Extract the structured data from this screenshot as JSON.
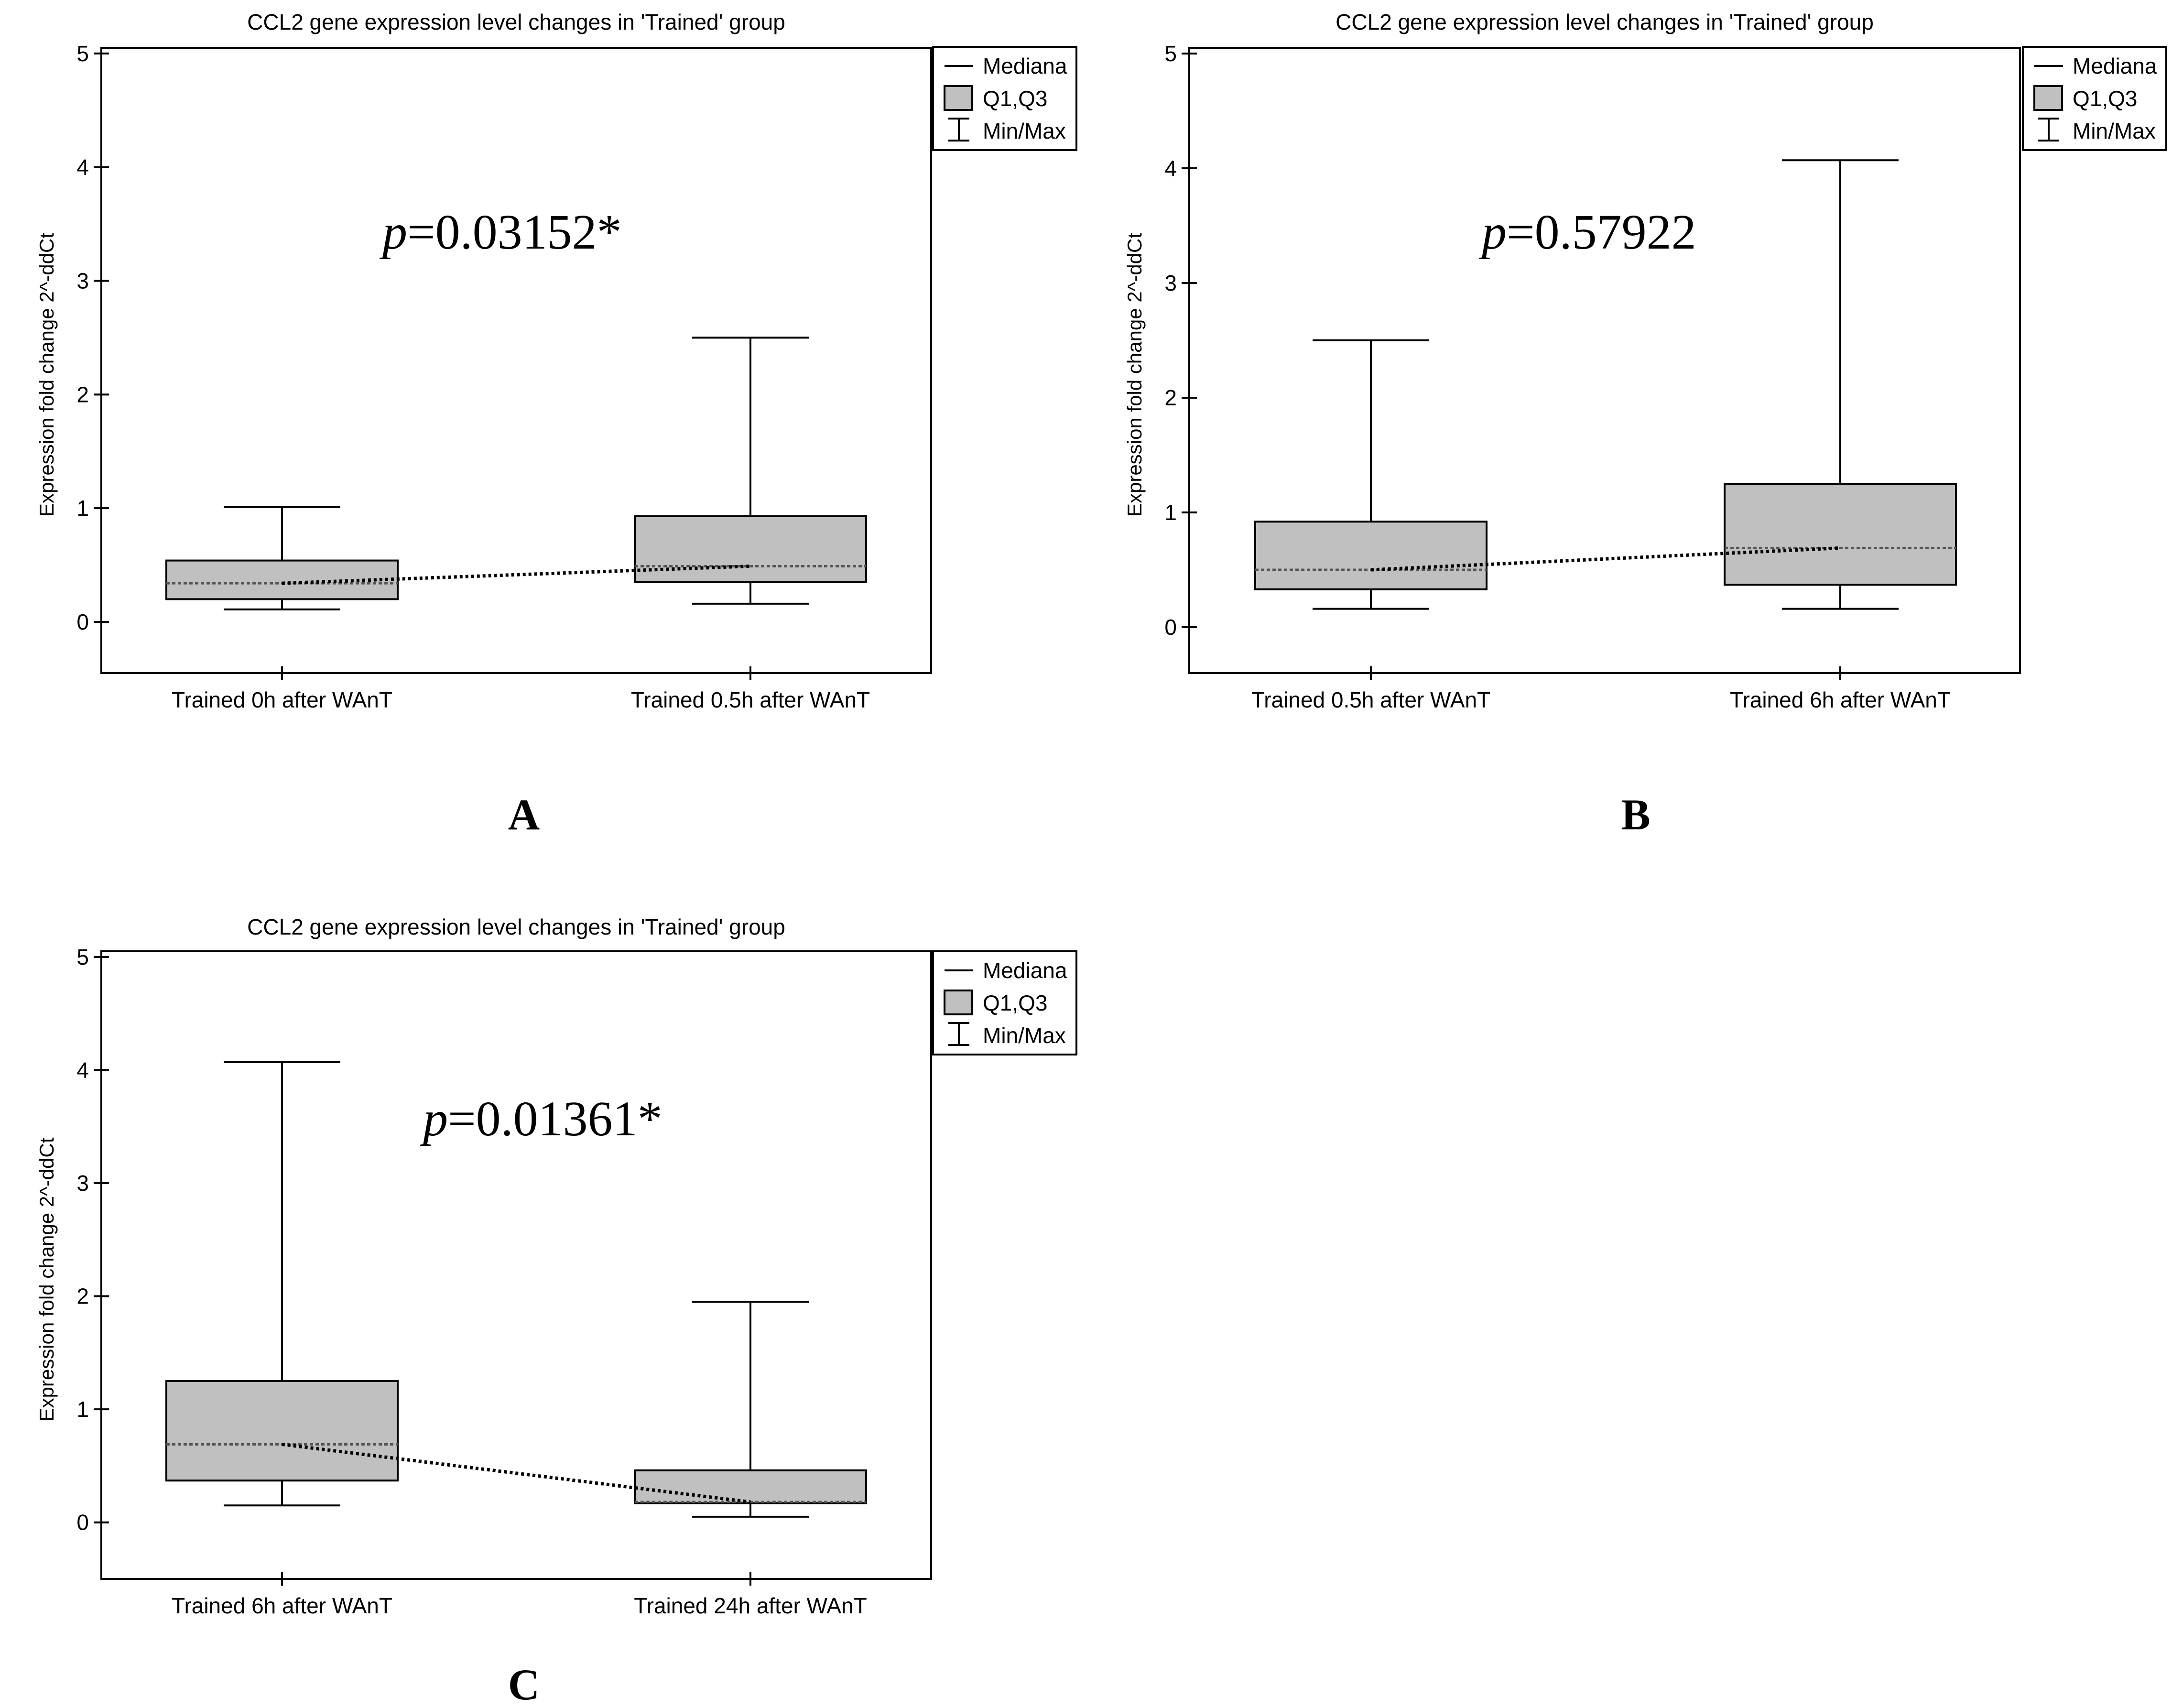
{
  "legend": {
    "median_label": "Mediana",
    "quartile_label": "Q1,Q3",
    "minmax_label": "Min/Max"
  },
  "colors": {
    "box_fill": "#c0c0c0",
    "line": "#000000",
    "background": "#ffffff"
  },
  "chart_data": [
    {
      "type": "box",
      "panel_label": "A",
      "title": "CCL2 gene expression level changes in 'Trained' group",
      "ylabel": "Expression fold change 2^-ddCt",
      "xlabel": "",
      "ylim": [
        -0.45,
        5.05
      ],
      "yticks": [
        0,
        1,
        2,
        3,
        4,
        5
      ],
      "grid": false,
      "legend_position": "top-right",
      "annotation": {
        "p_symbol": "p",
        "p_value": "=0.03152*"
      },
      "categories": [
        "Trained 0h after WAnT",
        "Trained 0.5h after WAnT"
      ],
      "boxes": [
        {
          "min": 0.11,
          "q1": 0.2,
          "median": 0.34,
          "q3": 0.54,
          "max": 1.01
        },
        {
          "min": 0.16,
          "q1": 0.35,
          "median": 0.49,
          "q3": 0.93,
          "max": 2.5
        }
      ]
    },
    {
      "type": "box",
      "panel_label": "B",
      "title": "CCL2 gene expression level changes in 'Trained' group",
      "ylabel": "Expression fold change 2^-ddCt",
      "xlabel": "",
      "ylim": [
        -0.4,
        5.05
      ],
      "yticks": [
        0,
        1,
        2,
        3,
        4,
        5
      ],
      "grid": false,
      "legend_position": "top-right",
      "annotation": {
        "p_symbol": "p",
        "p_value": "=0.57922"
      },
      "categories": [
        "Trained 0.5h after WAnT",
        "Trained 6h after WAnT"
      ],
      "boxes": [
        {
          "min": 0.16,
          "q1": 0.33,
          "median": 0.5,
          "q3": 0.92,
          "max": 2.5
        },
        {
          "min": 0.16,
          "q1": 0.37,
          "median": 0.69,
          "q3": 1.25,
          "max": 4.07
        }
      ]
    },
    {
      "type": "box",
      "panel_label": "C",
      "title": "CCL2 gene expression level changes in 'Trained' group",
      "ylabel": "Expression fold change 2^-ddCt",
      "xlabel": "",
      "ylim": [
        -0.5,
        5.05
      ],
      "yticks": [
        0,
        1,
        2,
        3,
        4,
        5
      ],
      "grid": false,
      "legend_position": "top-right",
      "annotation": {
        "p_symbol": "p",
        "p_value": "=0.01361*"
      },
      "categories": [
        "Trained 6h after WAnT",
        "Trained 24h after WAnT"
      ],
      "boxes": [
        {
          "min": 0.15,
          "q1": 0.37,
          "median": 0.69,
          "q3": 1.25,
          "max": 4.07
        },
        {
          "min": 0.05,
          "q1": 0.17,
          "median": 0.18,
          "q3": 0.46,
          "max": 1.95
        }
      ]
    }
  ]
}
